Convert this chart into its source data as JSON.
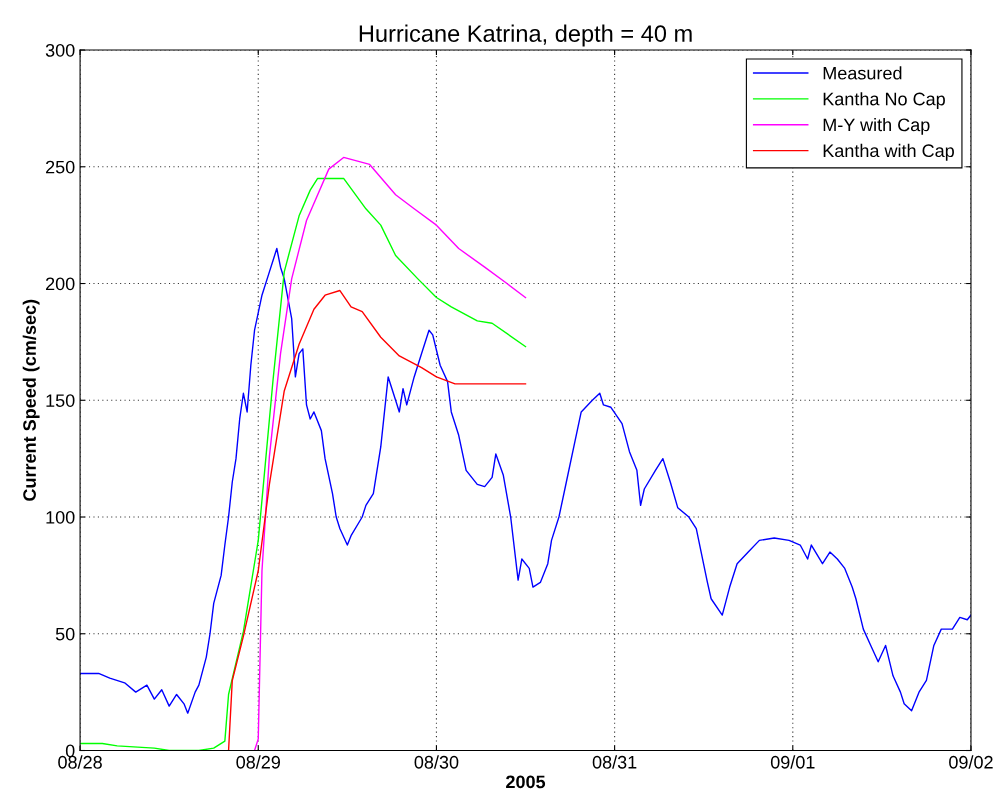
{
  "chart_data": {
    "type": "line",
    "title": "Hurricane Katrina, depth = 40 m",
    "xlabel": "2005",
    "ylabel": "Current Speed (cm/sec)",
    "xlim": [
      "2005-08-28",
      "2005-09-02"
    ],
    "xticks": [
      {
        "value": "2005-08-28",
        "label": "08/28"
      },
      {
        "value": "2005-08-29",
        "label": "08/29"
      },
      {
        "value": "2005-08-30",
        "label": "08/30"
      },
      {
        "value": "2005-08-31",
        "label": "08/31"
      },
      {
        "value": "2005-09-01",
        "label": "09/01"
      },
      {
        "value": "2005-09-02",
        "label": "09/02"
      }
    ],
    "ylim": [
      0,
      300
    ],
    "yticks": [
      0,
      50,
      100,
      150,
      200,
      250,
      300
    ],
    "grid": true,
    "legend": "top right",
    "series": [
      {
        "name": "Measured",
        "color": "#0000ff",
        "x": [
          "2005-08-28T00:00",
          "2005-08-28T02:30",
          "2005-08-28T04:00",
          "2005-08-28T06:00",
          "2005-08-28T07:30",
          "2005-08-28T09:00",
          "2005-08-28T10:00",
          "2005-08-28T11:00",
          "2005-08-28T12:00",
          "2005-08-28T13:00",
          "2005-08-28T14:00",
          "2005-08-28T14:30",
          "2005-08-28T15:30",
          "2005-08-28T16:00",
          "2005-08-28T17:00",
          "2005-08-28T17:30",
          "2005-08-28T18:00",
          "2005-08-28T19:00",
          "2005-08-28T19:30",
          "2005-08-28T20:00",
          "2005-08-28T20:30",
          "2005-08-28T21:00",
          "2005-08-28T21:30",
          "2005-08-28T22:00",
          "2005-08-28T22:30",
          "2005-08-28T23:00",
          "2005-08-28T23:30",
          "2005-08-29T00:30",
          "2005-08-29T01:30",
          "2005-08-29T02:00",
          "2005-08-29T02:30",
          "2005-08-29T03:00",
          "2005-08-29T03:30",
          "2005-08-29T04:30",
          "2005-08-29T05:00",
          "2005-08-29T05:30",
          "2005-08-29T06:00",
          "2005-08-29T06:30",
          "2005-08-29T07:00",
          "2005-08-29T07:30",
          "2005-08-29T08:30",
          "2005-08-29T09:00",
          "2005-08-29T10:00",
          "2005-08-29T10:30",
          "2005-08-29T11:00",
          "2005-08-29T12:00",
          "2005-08-29T12:30",
          "2005-08-29T14:00",
          "2005-08-29T14:30",
          "2005-08-29T15:30",
          "2005-08-29T16:30",
          "2005-08-29T17:30",
          "2005-08-29T18:30",
          "2005-08-29T19:00",
          "2005-08-29T19:30",
          "2005-08-29T20:00",
          "2005-08-29T21:00",
          "2005-08-29T22:00",
          "2005-08-29T23:00",
          "2005-08-29T23:30",
          "2005-08-30T00:30",
          "2005-08-30T01:30",
          "2005-08-30T02:00",
          "2005-08-30T03:00",
          "2005-08-30T04:00",
          "2005-08-30T05:30",
          "2005-08-30T06:30",
          "2005-08-30T07:30",
          "2005-08-30T08:00",
          "2005-08-30T09:00",
          "2005-08-30T10:00",
          "2005-08-30T11:00",
          "2005-08-30T11:30",
          "2005-08-30T12:30",
          "2005-08-30T13:00",
          "2005-08-30T14:00",
          "2005-08-30T15:00",
          "2005-08-30T15:30",
          "2005-08-30T16:30",
          "2005-08-30T17:30",
          "2005-08-30T18:30",
          "2005-08-30T19:30",
          "2005-08-30T21:00",
          "2005-08-30T22:00",
          "2005-08-30T22:30",
          "2005-08-30T23:30",
          "2005-08-31T01:00",
          "2005-08-31T02:00",
          "2005-08-31T03:00",
          "2005-08-31T03:30",
          "2005-08-31T04:00",
          "2005-08-31T05:30",
          "2005-08-31T06:30",
          "2005-08-31T07:30",
          "2005-08-31T08:30",
          "2005-08-31T10:00",
          "2005-08-31T11:00",
          "2005-08-31T12:30",
          "2005-08-31T13:00",
          "2005-08-31T14:30",
          "2005-08-31T15:30",
          "2005-08-31T16:30",
          "2005-08-31T18:00",
          "2005-08-31T19:30",
          "2005-08-31T21:30",
          "2005-08-31T23:30",
          "2005-09-01T01:00",
          "2005-09-01T02:00",
          "2005-09-01T02:30",
          "2005-09-01T04:00",
          "2005-09-01T05:00",
          "2005-09-01T06:00",
          "2005-09-01T07:00",
          "2005-09-01T08:00",
          "2005-09-01T08:30",
          "2005-09-01T09:30",
          "2005-09-01T10:30",
          "2005-09-01T11:30",
          "2005-09-01T12:30",
          "2005-09-01T13:30",
          "2005-09-01T14:30",
          "2005-09-01T15:00",
          "2005-09-01T16:00",
          "2005-09-01T17:00",
          "2005-09-01T18:00",
          "2005-09-01T19:00",
          "2005-09-01T20:00",
          "2005-09-01T21:30",
          "2005-09-01T22:30",
          "2005-09-01T23:30",
          "2005-09-02T00:00"
        ],
        "values": [
          33,
          33,
          31,
          29,
          25,
          28,
          22,
          26,
          19,
          24,
          20,
          16,
          25,
          28,
          40,
          50,
          63,
          75,
          88,
          100,
          115,
          125,
          142,
          153,
          145,
          165,
          180,
          195,
          205,
          210,
          215,
          207,
          202,
          185,
          160,
          170,
          172,
          148,
          142,
          145,
          137,
          125,
          110,
          100,
          95,
          88,
          92,
          100,
          105,
          110,
          130,
          160,
          150,
          145,
          155,
          148,
          160,
          170,
          180,
          178,
          165,
          158,
          145,
          135,
          120,
          114,
          113,
          117,
          127,
          118,
          100,
          73,
          82,
          78,
          70,
          72,
          80,
          90,
          100,
          115,
          130,
          145,
          150,
          153,
          148,
          147,
          140,
          128,
          120,
          105,
          112,
          120,
          125,
          115,
          104,
          100,
          95,
          72,
          65,
          58,
          70,
          80,
          85,
          90,
          91,
          90,
          88,
          82,
          88,
          80,
          85,
          82,
          78,
          70,
          65,
          52,
          45,
          38,
          45,
          32,
          25,
          20,
          17,
          25,
          30,
          45,
          52,
          52,
          57,
          56,
          58
        ]
      },
      {
        "name": "Kantha No Cap",
        "color": "#00ff00",
        "x": [
          "2005-08-28T00:00",
          "2005-08-28T03:00",
          "2005-08-28T05:00",
          "2005-08-28T10:00",
          "2005-08-28T12:00",
          "2005-08-28T16:00",
          "2005-08-28T18:00",
          "2005-08-28T19:30",
          "2005-08-28T20:00",
          "2005-08-28T22:00",
          "2005-08-29T00:00",
          "2005-08-29T02:00",
          "2005-08-29T03:30",
          "2005-08-29T05:30",
          "2005-08-29T07:00",
          "2005-08-29T08:00",
          "2005-08-29T11:30",
          "2005-08-29T14:30",
          "2005-08-29T16:30",
          "2005-08-29T18:30",
          "2005-08-29T21:30",
          "2005-08-30T00:00",
          "2005-08-30T02:00",
          "2005-08-30T05:30",
          "2005-08-30T07:30",
          "2005-08-30T12:00"
        ],
        "values": [
          3,
          3,
          2,
          1,
          0,
          0,
          1,
          4,
          24,
          51,
          90,
          159,
          205,
          229,
          240,
          245,
          245,
          232,
          225,
          212,
          202,
          194,
          190,
          184,
          183,
          173
        ]
      },
      {
        "name": "M-Y with Cap",
        "color": "#ff00ff",
        "x": [
          "2005-08-28T23:30",
          "2005-08-29T00:00",
          "2005-08-29T00:30",
          "2005-08-29T01:30",
          "2005-08-29T03:00",
          "2005-08-29T04:30",
          "2005-08-29T06:30",
          "2005-08-29T09:30",
          "2005-08-29T11:30",
          "2005-08-29T15:00",
          "2005-08-29T18:30",
          "2005-08-29T21:00",
          "2005-08-30T00:00",
          "2005-08-30T03:00",
          "2005-08-30T06:30",
          "2005-08-30T09:30",
          "2005-08-30T12:00"
        ],
        "values": [
          0,
          5,
          77,
          126,
          170,
          202,
          227,
          249,
          254,
          251,
          238,
          232,
          225,
          215,
          207,
          200,
          194
        ]
      },
      {
        "name": "Kantha with Cap",
        "color": "#ff0000",
        "x": [
          "2005-08-28T20:00",
          "2005-08-28T20:30",
          "2005-08-28T22:00",
          "2005-08-29T00:00",
          "2005-08-29T01:30",
          "2005-08-29T03:30",
          "2005-08-29T05:30",
          "2005-08-29T07:30",
          "2005-08-29T09:00",
          "2005-08-29T11:00",
          "2005-08-29T12:30",
          "2005-08-29T14:00",
          "2005-08-29T16:30",
          "2005-08-29T19:00",
          "2005-08-29T22:00",
          "2005-08-30T00:00",
          "2005-08-30T02:30",
          "2005-08-30T12:00"
        ],
        "values": [
          0,
          30,
          49,
          77,
          114,
          154,
          174,
          189,
          195,
          197,
          190,
          188,
          177,
          169,
          164,
          160,
          157,
          157
        ]
      }
    ]
  }
}
